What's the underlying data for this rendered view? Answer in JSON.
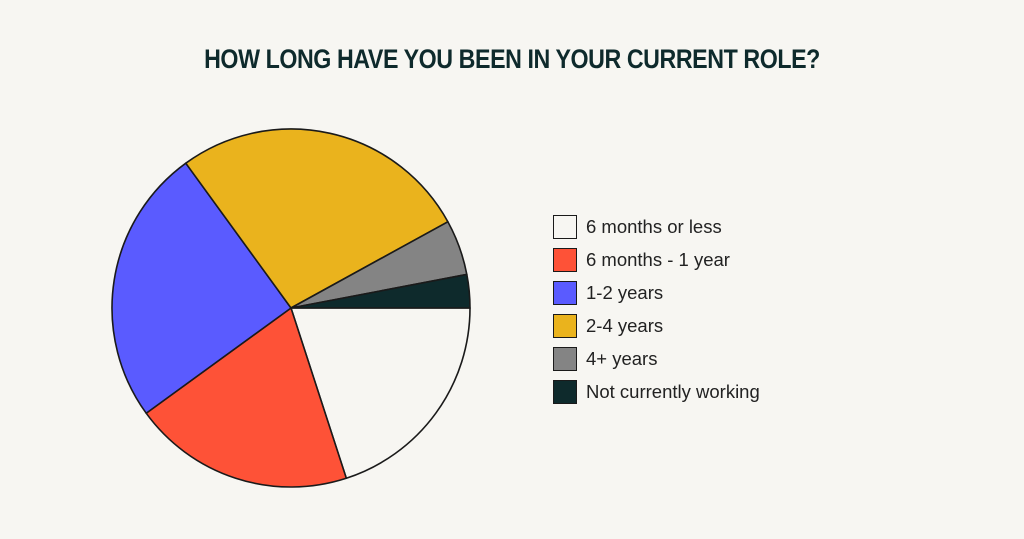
{
  "chart_data": {
    "type": "pie",
    "title": "HOW LONG HAVE YOU BEEN IN YOUR CURRENT ROLE?",
    "legend_position": "right",
    "start_angle": "3 o'clock",
    "direction": "clockwise",
    "slices": [
      {
        "label": "6 months or less",
        "value": 20,
        "color": "#f7f6f2"
      },
      {
        "label": "6 months - 1 year",
        "value": 20,
        "color": "#fe5237"
      },
      {
        "label": "1-2 years",
        "value": 25,
        "color": "#5a5bff"
      },
      {
        "label": "2-4 years",
        "value": 27,
        "color": "#eab31d"
      },
      {
        "label": "4+ years",
        "value": 5,
        "color": "#848484"
      },
      {
        "label": "Not currently working",
        "value": 3,
        "color": "#0e2a2c"
      }
    ]
  }
}
